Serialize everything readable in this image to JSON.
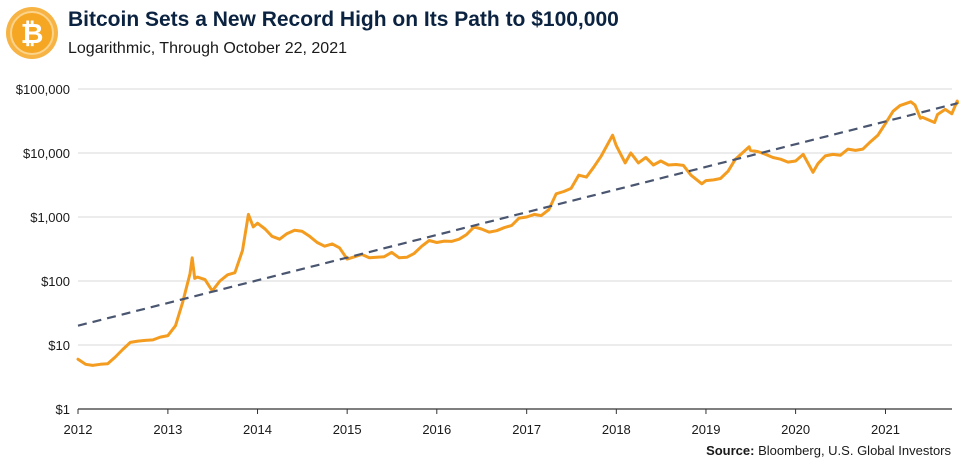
{
  "title": "Bitcoin Sets a New Record High on Its Path to $100,000",
  "subtitle": "Logarithmic, Through October 22, 2021",
  "source_label": "Source:",
  "source_text": " Bloomberg, U.S. Global Investors",
  "logo_icon": "bitcoin-coin-icon",
  "colors": {
    "price_line": "#f39c1f",
    "trend_line": "#4a5670",
    "grid": "#d9d9d9",
    "title": "#0b2340",
    "logo": "#f5a623"
  },
  "chart_data": {
    "type": "line",
    "title": "Bitcoin Sets a New Record High on Its Path to $100,000",
    "subtitle": "Logarithmic, Through October 22, 2021",
    "xlabel": "",
    "ylabel": "",
    "y_scale": "log",
    "ylim": [
      1,
      100000
    ],
    "xlim": [
      "2012-01-01",
      "2021-10-22"
    ],
    "grid": true,
    "legend": "none",
    "y_ticks": [
      {
        "value": 100000,
        "label": "$100,000"
      },
      {
        "value": 10000,
        "label": "$10,000"
      },
      {
        "value": 1000,
        "label": "$1,000"
      },
      {
        "value": 100,
        "label": "$100"
      },
      {
        "value": 10,
        "label": "$10"
      },
      {
        "value": 1,
        "label": "$1"
      }
    ],
    "x_ticks": [
      "2012",
      "2013",
      "2014",
      "2015",
      "2016",
      "2017",
      "2018",
      "2019",
      "2020",
      "2021"
    ],
    "series": [
      {
        "name": "Bitcoin price",
        "style": "solid",
        "points": [
          [
            "2012-01-01",
            6
          ],
          [
            "2012-02-01",
            5
          ],
          [
            "2012-03-01",
            4.8
          ],
          [
            "2012-04-01",
            5
          ],
          [
            "2012-05-01",
            5.1
          ],
          [
            "2012-06-01",
            6.5
          ],
          [
            "2012-07-01",
            8.5
          ],
          [
            "2012-08-01",
            11
          ],
          [
            "2012-09-01",
            11.5
          ],
          [
            "2012-10-01",
            11.8
          ],
          [
            "2012-11-01",
            12
          ],
          [
            "2012-12-01",
            13.3
          ],
          [
            "2013-01-01",
            14
          ],
          [
            "2013-02-01",
            20
          ],
          [
            "2013-03-01",
            45
          ],
          [
            "2013-04-01",
            130
          ],
          [
            "2013-04-10",
            230
          ],
          [
            "2013-04-20",
            110
          ],
          [
            "2013-05-01",
            115
          ],
          [
            "2013-06-01",
            105
          ],
          [
            "2013-07-01",
            70
          ],
          [
            "2013-08-01",
            100
          ],
          [
            "2013-09-01",
            125
          ],
          [
            "2013-10-01",
            135
          ],
          [
            "2013-11-01",
            300
          ],
          [
            "2013-11-25",
            1100
          ],
          [
            "2013-12-15",
            700
          ],
          [
            "2014-01-01",
            800
          ],
          [
            "2014-02-01",
            650
          ],
          [
            "2014-03-01",
            500
          ],
          [
            "2014-04-01",
            450
          ],
          [
            "2014-05-01",
            550
          ],
          [
            "2014-06-01",
            620
          ],
          [
            "2014-07-01",
            600
          ],
          [
            "2014-08-01",
            500
          ],
          [
            "2014-09-01",
            400
          ],
          [
            "2014-10-01",
            350
          ],
          [
            "2014-11-01",
            380
          ],
          [
            "2014-12-01",
            330
          ],
          [
            "2015-01-01",
            220
          ],
          [
            "2015-02-01",
            240
          ],
          [
            "2015-03-01",
            260
          ],
          [
            "2015-04-01",
            230
          ],
          [
            "2015-05-01",
            235
          ],
          [
            "2015-06-01",
            240
          ],
          [
            "2015-07-01",
            280
          ],
          [
            "2015-08-01",
            230
          ],
          [
            "2015-09-01",
            235
          ],
          [
            "2015-10-01",
            270
          ],
          [
            "2015-11-01",
            350
          ],
          [
            "2015-12-01",
            430
          ],
          [
            "2016-01-01",
            400
          ],
          [
            "2016-02-01",
            420
          ],
          [
            "2016-03-01",
            415
          ],
          [
            "2016-04-01",
            450
          ],
          [
            "2016-05-01",
            530
          ],
          [
            "2016-06-01",
            700
          ],
          [
            "2016-07-01",
            650
          ],
          [
            "2016-08-01",
            580
          ],
          [
            "2016-09-01",
            610
          ],
          [
            "2016-10-01",
            680
          ],
          [
            "2016-11-01",
            740
          ],
          [
            "2016-12-01",
            960
          ],
          [
            "2017-01-01",
            1000
          ],
          [
            "2017-02-01",
            1100
          ],
          [
            "2017-03-01",
            1050
          ],
          [
            "2017-04-01",
            1300
          ],
          [
            "2017-05-01",
            2300
          ],
          [
            "2017-06-01",
            2500
          ],
          [
            "2017-07-01",
            2800
          ],
          [
            "2017-08-01",
            4500
          ],
          [
            "2017-09-01",
            4200
          ],
          [
            "2017-10-01",
            6000
          ],
          [
            "2017-11-01",
            9000
          ],
          [
            "2017-12-17",
            19000
          ],
          [
            "2018-01-01",
            13000
          ],
          [
            "2018-02-06",
            7000
          ],
          [
            "2018-03-01",
            10000
          ],
          [
            "2018-04-01",
            7000
          ],
          [
            "2018-05-01",
            8500
          ],
          [
            "2018-06-01",
            6500
          ],
          [
            "2018-07-01",
            7500
          ],
          [
            "2018-08-01",
            6500
          ],
          [
            "2018-09-01",
            6600
          ],
          [
            "2018-10-01",
            6400
          ],
          [
            "2018-11-01",
            4500
          ],
          [
            "2018-12-15",
            3300
          ],
          [
            "2019-01-01",
            3700
          ],
          [
            "2019-02-01",
            3800
          ],
          [
            "2019-03-01",
            4000
          ],
          [
            "2019-04-01",
            5200
          ],
          [
            "2019-05-01",
            8000
          ],
          [
            "2019-06-26",
            12500
          ],
          [
            "2019-07-01",
            11000
          ],
          [
            "2019-08-01",
            10500
          ],
          [
            "2019-09-01",
            9500
          ],
          [
            "2019-10-01",
            8500
          ],
          [
            "2019-11-01",
            8000
          ],
          [
            "2019-12-01",
            7200
          ],
          [
            "2020-01-01",
            7500
          ],
          [
            "2020-02-01",
            9500
          ],
          [
            "2020-03-12",
            5000
          ],
          [
            "2020-04-01",
            6800
          ],
          [
            "2020-05-01",
            9000
          ],
          [
            "2020-06-01",
            9500
          ],
          [
            "2020-07-01",
            9200
          ],
          [
            "2020-08-01",
            11500
          ],
          [
            "2020-09-01",
            11000
          ],
          [
            "2020-10-01",
            11500
          ],
          [
            "2020-11-01",
            15000
          ],
          [
            "2020-12-01",
            19000
          ],
          [
            "2021-01-01",
            29000
          ],
          [
            "2021-02-01",
            45000
          ],
          [
            "2021-03-01",
            55000
          ],
          [
            "2021-04-14",
            63000
          ],
          [
            "2021-05-01",
            56000
          ],
          [
            "2021-05-23",
            35000
          ],
          [
            "2021-06-01",
            36000
          ],
          [
            "2021-07-20",
            30000
          ],
          [
            "2021-08-01",
            40000
          ],
          [
            "2021-09-01",
            48000
          ],
          [
            "2021-09-28",
            41000
          ],
          [
            "2021-10-20",
            65000
          ],
          [
            "2021-10-22",
            61000
          ]
        ]
      },
      {
        "name": "Trend",
        "style": "dashed",
        "points": [
          [
            "2012-01-01",
            20
          ],
          [
            "2021-10-22",
            60000
          ]
        ]
      }
    ]
  }
}
